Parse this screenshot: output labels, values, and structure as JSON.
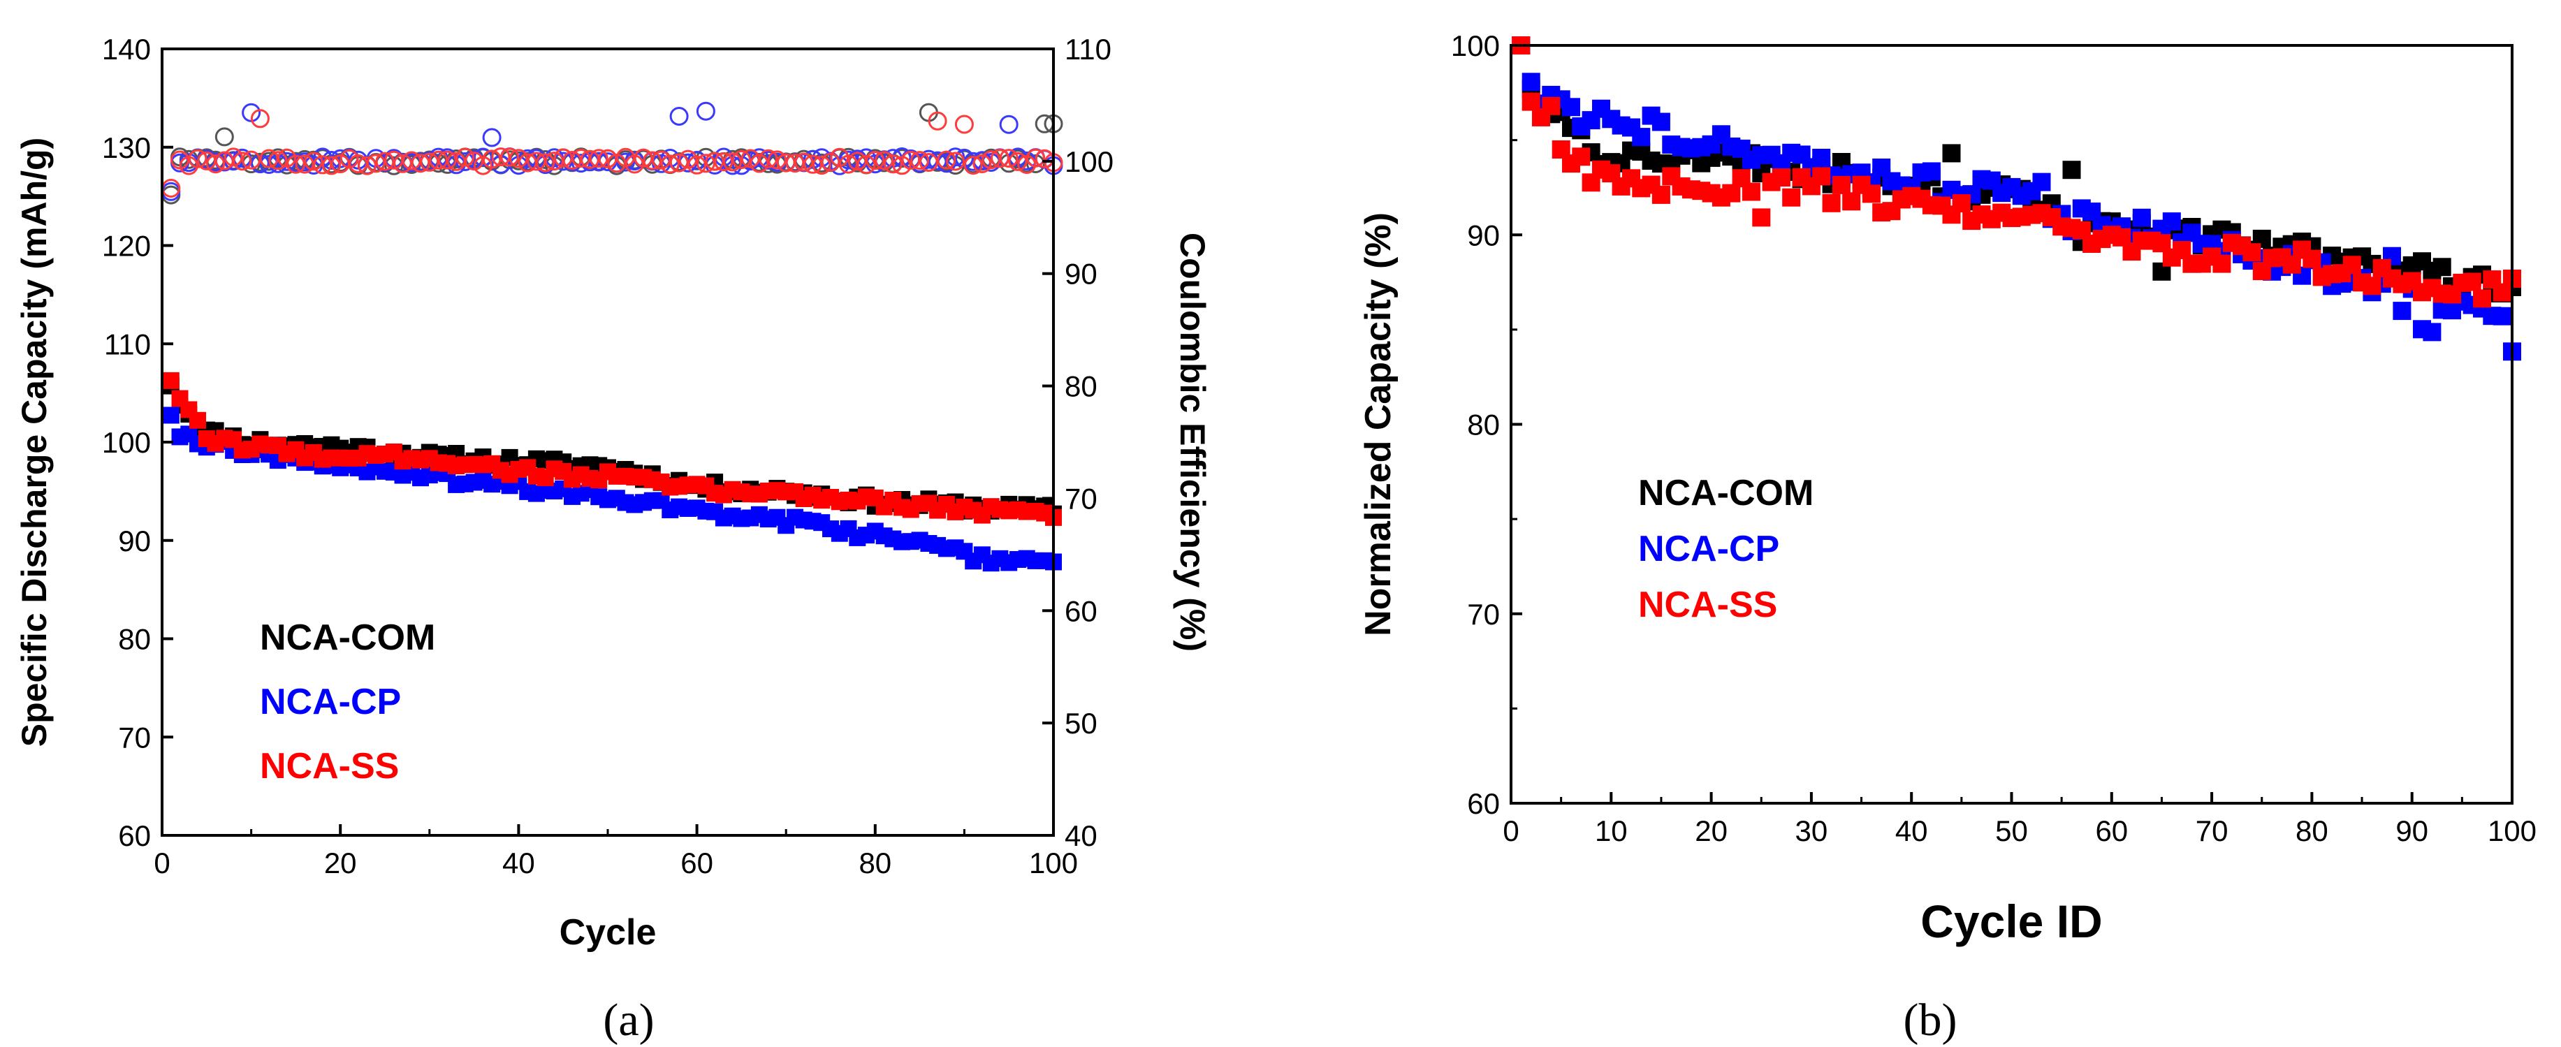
{
  "figure": {
    "panel_a_label": "(a)",
    "panel_b_label": "(b)",
    "label_a_letter": "a",
    "label_b_letter": "b"
  },
  "colors": {
    "NCA-COM": "#000000",
    "NCA-CP": "#0000ff",
    "NCA-SS": "#ff0000",
    "CE-COM": "#555555",
    "CE-CP": "#3a3aff",
    "CE-SS": "#ff3b3b"
  },
  "chart_data": [
    {
      "type": "scatter",
      "panel": "a",
      "title": "",
      "xlabel": "Cycle",
      "ylabel": "Specific Discharge Capacity (mAh/g)",
      "y2label": "Coulombic Efficiency (%)",
      "xlim": [
        0,
        100
      ],
      "ylim": [
        60,
        140
      ],
      "y2lim": [
        40,
        110
      ],
      "xticks": [
        0,
        20,
        40,
        60,
        80,
        100
      ],
      "yticks": [
        60,
        70,
        80,
        90,
        100,
        110,
        120,
        130,
        140
      ],
      "y2ticks": [
        40,
        50,
        60,
        70,
        80,
        90,
        100,
        110
      ],
      "grid": false,
      "legend_position": "bottom-left",
      "legend": [
        "NCA-COM",
        "NCA-CP",
        "NCA-SS"
      ],
      "capacity_anchors": {
        "NCA-COM": [
          [
            1,
            106
          ],
          [
            2,
            104
          ],
          [
            5,
            101
          ],
          [
            10,
            100
          ],
          [
            20,
            99.5
          ],
          [
            30,
            98.5
          ],
          [
            40,
            98
          ],
          [
            50,
            97.5
          ],
          [
            60,
            95.5
          ],
          [
            70,
            95
          ],
          [
            80,
            94
          ],
          [
            90,
            93.5
          ],
          [
            100,
            93
          ]
        ],
        "NCA-CP": [
          [
            1,
            103
          ],
          [
            2,
            101
          ],
          [
            5,
            100
          ],
          [
            10,
            99
          ],
          [
            20,
            97.5
          ],
          [
            30,
            96.5
          ],
          [
            40,
            95.5
          ],
          [
            50,
            94.5
          ],
          [
            60,
            93
          ],
          [
            70,
            92
          ],
          [
            80,
            90.5
          ],
          [
            90,
            88.5
          ],
          [
            100,
            87.5
          ]
        ],
        "NCA-SS": [
          [
            1,
            106.5
          ],
          [
            2,
            104
          ],
          [
            5,
            100.5
          ],
          [
            10,
            99.5
          ],
          [
            20,
            98.5
          ],
          [
            30,
            98.5
          ],
          [
            40,
            97
          ],
          [
            50,
            96.5
          ],
          [
            60,
            95.2
          ],
          [
            70,
            94.8
          ],
          [
            80,
            94
          ],
          [
            90,
            93.2
          ],
          [
            100,
            92.5
          ]
        ]
      },
      "ce_baseline": 100,
      "ce_first_cycle": 97
    },
    {
      "type": "scatter",
      "panel": "b",
      "title": "",
      "xlabel": "Cycle ID",
      "ylabel": "Normalized Capacity (%)",
      "xlim": [
        0,
        100
      ],
      "ylim": [
        60,
        100
      ],
      "xticks": [
        0,
        10,
        20,
        30,
        40,
        50,
        60,
        70,
        80,
        90,
        100
      ],
      "yticks": [
        60,
        70,
        80,
        90,
        100
      ],
      "grid": false,
      "legend_position": "middle-left",
      "legend": [
        "NCA-COM",
        "NCA-CP",
        "NCA-SS"
      ],
      "anchors": {
        "NCA-COM": [
          [
            1,
            100
          ],
          [
            2,
            98
          ],
          [
            5,
            96
          ],
          [
            10,
            94
          ],
          [
            20,
            94
          ],
          [
            30,
            93.5
          ],
          [
            40,
            92.5
          ],
          [
            50,
            92
          ],
          [
            60,
            90.5
          ],
          [
            70,
            89.8
          ],
          [
            80,
            89
          ],
          [
            90,
            88
          ],
          [
            100,
            87.5
          ]
        ],
        "NCA-CP": [
          [
            1,
            100
          ],
          [
            2,
            97.5
          ],
          [
            5,
            96.5
          ],
          [
            10,
            96
          ],
          [
            20,
            95
          ],
          [
            30,
            94
          ],
          [
            40,
            93
          ],
          [
            50,
            92
          ],
          [
            60,
            90.8
          ],
          [
            70,
            89.5
          ],
          [
            80,
            88
          ],
          [
            90,
            86.5
          ],
          [
            100,
            85.5
          ]
        ],
        "NCA-SS": [
          [
            1,
            100
          ],
          [
            2,
            97
          ],
          [
            5,
            94
          ],
          [
            10,
            93
          ],
          [
            20,
            92.5
          ],
          [
            30,
            92.5
          ],
          [
            40,
            91.5
          ],
          [
            50,
            91
          ],
          [
            60,
            89.5
          ],
          [
            70,
            89
          ],
          [
            80,
            88.5
          ],
          [
            90,
            87.5
          ],
          [
            100,
            87
          ]
        ]
      }
    }
  ]
}
